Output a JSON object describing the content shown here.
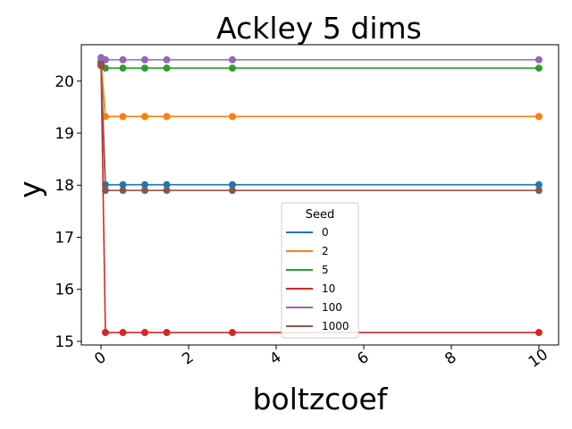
{
  "chart_data": {
    "type": "line",
    "title": "Ackley 5 dims",
    "xlabel": "boltzcoef",
    "ylabel": "y",
    "xlim": [
      -0.45,
      10.45
    ],
    "ylim": [
      14.93,
      20.7
    ],
    "xticks": [
      0,
      2,
      4,
      6,
      8,
      10
    ],
    "yticks": [
      15,
      16,
      17,
      18,
      19,
      20
    ],
    "grid": false,
    "legend": {
      "title": "Seed",
      "placement": "lower-center"
    },
    "x": [
      0,
      0.1,
      0.5,
      1,
      1.5,
      3,
      10
    ],
    "series": [
      {
        "name": "0",
        "color": "#1f77b4",
        "values": [
          20.35,
          18.01,
          18.01,
          18.01,
          18.01,
          18.01,
          18.01
        ]
      },
      {
        "name": "2",
        "color": "#ff7f0e",
        "values": [
          20.38,
          19.32,
          19.32,
          19.32,
          19.32,
          19.32,
          19.32
        ]
      },
      {
        "name": "5",
        "color": "#2ca02c",
        "values": [
          20.36,
          20.25,
          20.25,
          20.25,
          20.25,
          20.25,
          20.25
        ]
      },
      {
        "name": "10",
        "color": "#d62728",
        "values": [
          20.3,
          15.17,
          15.17,
          15.17,
          15.17,
          15.17,
          15.17
        ]
      },
      {
        "name": "100",
        "color": "#9467bd",
        "values": [
          20.45,
          20.41,
          20.41,
          20.41,
          20.41,
          20.41,
          20.41
        ]
      },
      {
        "name": "1000",
        "color": "#8c564b",
        "values": [
          20.33,
          17.9,
          17.9,
          17.9,
          17.9,
          17.9,
          17.9
        ]
      }
    ]
  }
}
